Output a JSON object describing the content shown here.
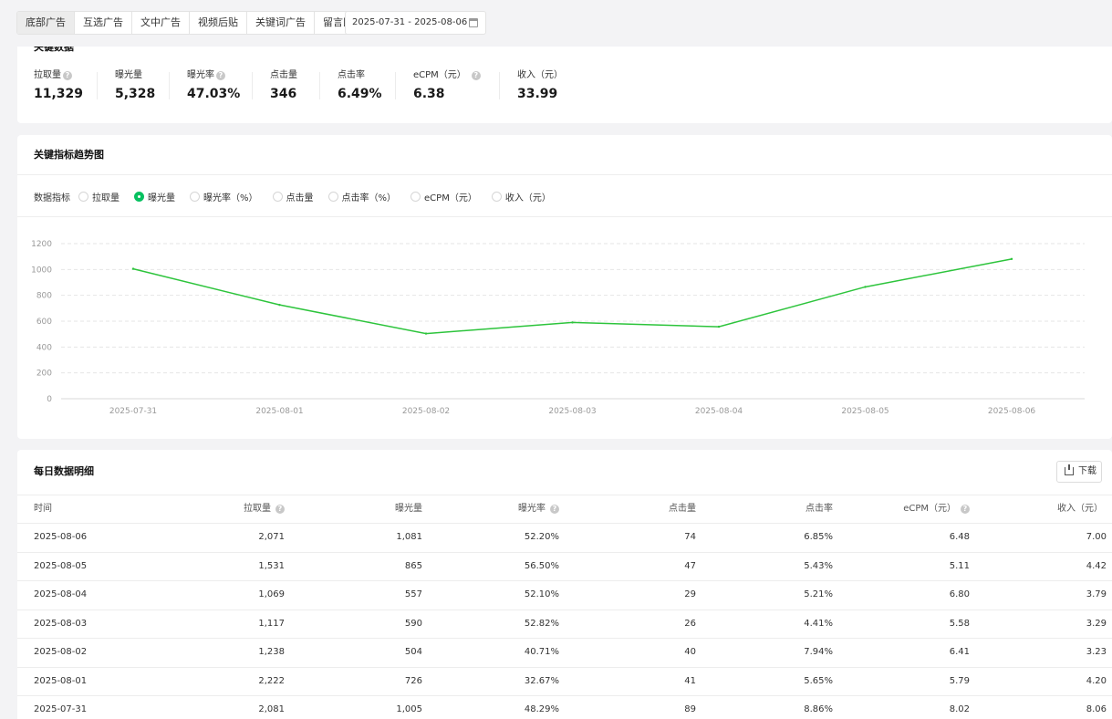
{
  "filter": {
    "tabs": [
      "底部广告",
      "互选广告",
      "文中广告",
      "视频后贴",
      "关键词广告",
      "留言区广告"
    ],
    "active_tab": 0,
    "date_range": "2025-07-31 - 2025-08-06"
  },
  "key_data": {
    "title": "关键数据",
    "metrics": [
      {
        "label": "拉取量",
        "value": "11,329",
        "help": true
      },
      {
        "label": "曝光量",
        "value": "5,328",
        "help": false
      },
      {
        "label": "曝光率",
        "value": "47.03%",
        "help": true
      },
      {
        "label": "点击量",
        "value": "346",
        "help": false
      },
      {
        "label": "点击率",
        "value": "6.49%",
        "help": false
      },
      {
        "label": "eCPM（元）",
        "value": "6.38",
        "help": true
      },
      {
        "label": "收入（元）",
        "value": "33.99",
        "help": false
      }
    ]
  },
  "trend": {
    "title": "关键指标趋势图",
    "selector_label": "数据指标",
    "options": [
      "拉取量",
      "曝光量",
      "曝光率（%）",
      "点击量",
      "点击率（%）",
      "eCPM（元）",
      "收入（元）"
    ],
    "selected": 1
  },
  "chart_data": {
    "type": "line",
    "x": [
      "2025-07-31",
      "2025-08-01",
      "2025-08-02",
      "2025-08-03",
      "2025-08-04",
      "2025-08-05",
      "2025-08-06"
    ],
    "series": [
      {
        "values": [
          1005,
          726,
          504,
          590,
          557,
          865,
          1081
        ],
        "color": "#2dc43c"
      }
    ],
    "y_ticks": [
      "1200",
      "1000",
      "800",
      "600",
      "400",
      "200",
      "0"
    ],
    "ylim": [
      0,
      1200
    ],
    "grid": true,
    "legend": "none",
    "title": "",
    "xlabel": "",
    "ylabel": ""
  },
  "daily": {
    "title": "每日数据明细",
    "download_label": "下载",
    "columns": [
      {
        "label": "时间",
        "help": false
      },
      {
        "label": "拉取量",
        "help": true
      },
      {
        "label": "曝光量",
        "help": false
      },
      {
        "label": "曝光率",
        "help": true
      },
      {
        "label": "点击量",
        "help": false
      },
      {
        "label": "点击率",
        "help": false
      },
      {
        "label": "eCPM（元）",
        "help": true
      },
      {
        "label": "收入（元）",
        "help": false
      }
    ],
    "rows": [
      [
        "2025-08-06",
        "2,071",
        "1,081",
        "52.20%",
        "74",
        "6.85%",
        "6.48",
        "7.00"
      ],
      [
        "2025-08-05",
        "1,531",
        "865",
        "56.50%",
        "47",
        "5.43%",
        "5.11",
        "4.42"
      ],
      [
        "2025-08-04",
        "1,069",
        "557",
        "52.10%",
        "29",
        "5.21%",
        "6.80",
        "3.79"
      ],
      [
        "2025-08-03",
        "1,117",
        "590",
        "52.82%",
        "26",
        "4.41%",
        "5.58",
        "3.29"
      ],
      [
        "2025-08-02",
        "1,238",
        "504",
        "40.71%",
        "40",
        "7.94%",
        "6.41",
        "3.23"
      ],
      [
        "2025-08-01",
        "2,222",
        "726",
        "32.67%",
        "41",
        "5.65%",
        "5.79",
        "4.20"
      ],
      [
        "2025-07-31",
        "2,081",
        "1,005",
        "48.29%",
        "89",
        "8.86%",
        "8.02",
        "8.06"
      ]
    ]
  }
}
